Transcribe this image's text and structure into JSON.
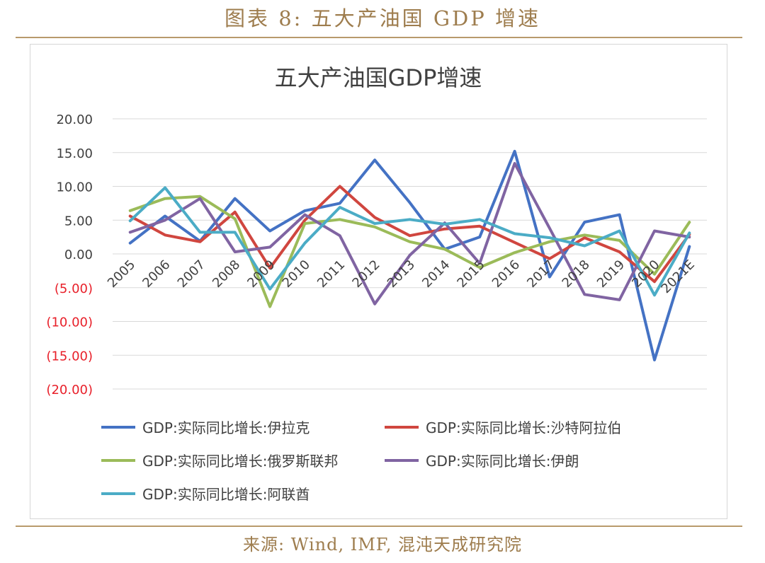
{
  "figure_title": "图表 8:  五大产油国 GDP 增速",
  "source_text": "来源:  Wind,  IMF,  混沌天成研究院",
  "chart_data": {
    "type": "line",
    "title": "五大产油国GDP增速",
    "xlabel": "",
    "ylabel": "",
    "categories": [
      "2005",
      "2006",
      "2007",
      "2008",
      "2009",
      "2010",
      "2011",
      "2012",
      "2013",
      "2014",
      "2015",
      "2016",
      "2017",
      "2018",
      "2019",
      "2020",
      "2021E"
    ],
    "y_ticks": [
      "20.00",
      "15.00",
      "10.00",
      "5.00",
      "0.00",
      "(5.00)",
      "(10.00)",
      "(15.00)",
      "(20.00)"
    ],
    "ylim": [
      -20,
      20
    ],
    "grid": true,
    "legend_position": "bottom",
    "negative_tick_color": "#e8202a",
    "series": [
      {
        "name": "GDP:实际同比增长:伊拉克",
        "color": "#4472c4",
        "values": [
          1.6,
          5.6,
          1.9,
          8.2,
          3.4,
          6.4,
          7.5,
          13.9,
          7.6,
          0.7,
          2.5,
          15.2,
          -3.4,
          4.7,
          5.8,
          -15.7,
          1.1
        ]
      },
      {
        "name": "GDP:实际同比增长:沙特阿拉伯",
        "color": "#d0463f",
        "values": [
          5.6,
          2.8,
          1.8,
          6.2,
          -2.1,
          5.0,
          10.0,
          5.4,
          2.7,
          3.7,
          4.1,
          1.7,
          -0.7,
          2.4,
          0.3,
          -4.1,
          2.9
        ]
      },
      {
        "name": "GDP:实际同比增长:俄罗斯联邦",
        "color": "#9bbb59",
        "values": [
          6.4,
          8.2,
          8.5,
          5.2,
          -7.8,
          4.5,
          5.1,
          4.0,
          1.8,
          0.7,
          -2.0,
          0.2,
          1.8,
          2.8,
          2.0,
          -3.0,
          4.7
        ]
      },
      {
        "name": "GDP:实际同比增长:伊朗",
        "color": "#8064a2",
        "values": [
          3.2,
          5.0,
          8.2,
          0.3,
          1.0,
          5.8,
          2.7,
          -7.4,
          -0.2,
          4.6,
          -1.4,
          13.4,
          3.8,
          -6.0,
          -6.8,
          3.4,
          2.5
        ]
      },
      {
        "name": "GDP:实际同比增长:阿联酋",
        "color": "#4bacc6",
        "values": [
          4.9,
          9.8,
          3.2,
          3.2,
          -5.2,
          1.6,
          6.9,
          4.5,
          5.1,
          4.4,
          5.1,
          3.0,
          2.4,
          1.2,
          3.4,
          -6.1,
          3.1
        ]
      }
    ]
  }
}
